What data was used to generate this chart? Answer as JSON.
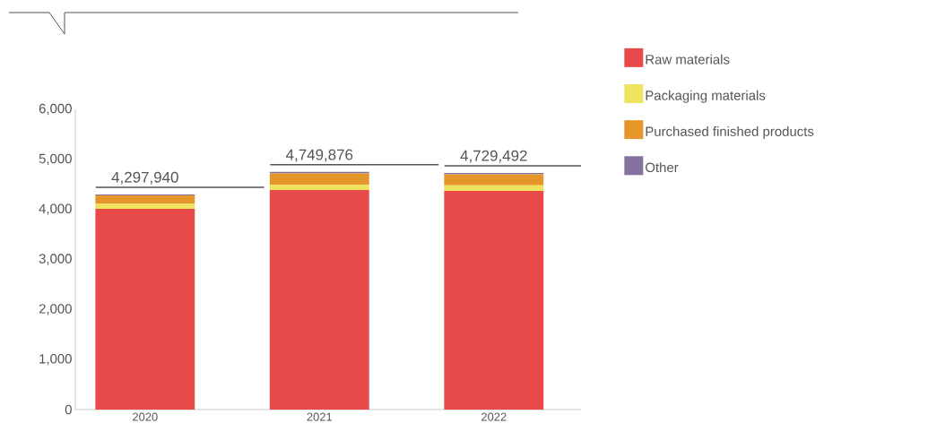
{
  "chart_data": {
    "type": "bar",
    "stacked": true,
    "categories": [
      "2020",
      "2021",
      "2022"
    ],
    "series": [
      {
        "name": "Raw materials",
        "color": "#e84a4a",
        "values": [
          4010,
          4390,
          4370
        ]
      },
      {
        "name": "Packaging materials",
        "color": "#ede35c",
        "values": [
          100,
          100,
          110
        ]
      },
      {
        "name": "Purchased finished products",
        "color": "#e5962a",
        "values": [
          170,
          230,
          220
        ]
      },
      {
        "name": "Other",
        "color": "#85719e",
        "values": [
          20,
          30,
          30
        ]
      }
    ],
    "annotations": [
      {
        "text": "4,297,940",
        "x": "2020",
        "y": 4300
      },
      {
        "text": "4,749,876",
        "x": "2021",
        "y": 4750
      },
      {
        "text": "4,729,492",
        "x": "2022",
        "y": 4730
      }
    ],
    "ylim": [
      0,
      6000
    ],
    "yticks": [
      0,
      {
        "value": 1000,
        "label": "1,000"
      },
      {
        "value": 2000,
        "label": "2,000"
      },
      {
        "value": 3000,
        "label": "3,000"
      },
      {
        "value": 4000,
        "label": "4,000"
      },
      {
        "value": 5000,
        "label": "5,000"
      },
      {
        "value": 6000,
        "label": "6,000"
      }
    ],
    "legend": "right"
  }
}
